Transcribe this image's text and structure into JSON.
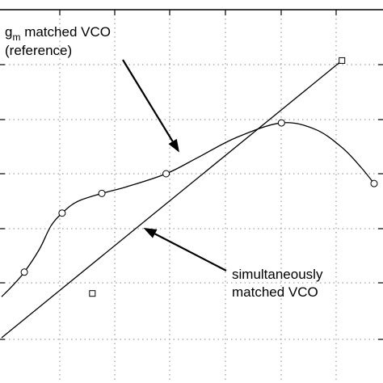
{
  "chart_data": {
    "type": "line",
    "title": "",
    "xlabel": "",
    "ylabel": "",
    "xlim": [
      0,
      10
    ],
    "ylim": [
      0,
      10
    ],
    "grid": true,
    "series": [
      {
        "name": "gm matched VCO (reference)",
        "marker": "circle",
        "x": [
          0.6,
          1.6,
          2.65,
          4.35,
          7.4,
          9.85
        ],
        "y": [
          2.0,
          3.8,
          4.4,
          5.0,
          6.55,
          4.7
        ],
        "curve": [
          [
            0.0,
            1.25
          ],
          [
            0.3,
            1.6
          ],
          [
            0.6,
            2.0
          ],
          [
            1.0,
            2.7
          ],
          [
            1.3,
            3.4
          ],
          [
            1.6,
            3.8
          ],
          [
            2.0,
            4.15
          ],
          [
            2.65,
            4.4
          ],
          [
            3.3,
            4.6
          ],
          [
            4.35,
            5.0
          ],
          [
            5.2,
            5.5
          ],
          [
            6.2,
            6.1
          ],
          [
            7.4,
            6.55
          ],
          [
            8.3,
            6.35
          ],
          [
            9.0,
            5.8
          ],
          [
            9.5,
            5.2
          ],
          [
            9.85,
            4.7
          ]
        ]
      },
      {
        "name": "simultaneously matched VCO",
        "marker": "square",
        "x": [
          2.4,
          9.0
        ],
        "y": [
          1.35,
          8.45
        ],
        "curve": [
          [
            0.0,
            0.0
          ],
          [
            9.0,
            8.45
          ]
        ]
      }
    ],
    "annotations": [
      {
        "id": "gm",
        "text_main": "g",
        "text_sub": "m",
        "text_rest": " matched VCO",
        "text_line2": "(reference)",
        "target": [
          4.7,
          5.65
        ]
      },
      {
        "id": "sim",
        "text_line1": "simultaneously",
        "text_line2": "matched VCO",
        "target": [
          3.75,
          3.35
        ]
      }
    ]
  }
}
